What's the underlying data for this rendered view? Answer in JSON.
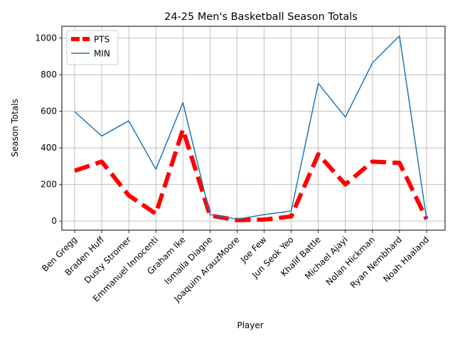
{
  "chart_data": {
    "type": "line",
    "title": "24-25 Men's Basketball Season Totals",
    "xlabel": "Player",
    "ylabel": "Season Totals",
    "categories": [
      "Ben Gregg",
      "Braden Huff",
      "Dusty Stromer",
      "Emmanuel Innocenti",
      "Graham Ike",
      "Ismaila Diagne",
      "Joaquim ArauzMoore",
      "Joe Few",
      "Jun Seok Yeo",
      "Khalif Battle",
      "Michael Ajayi",
      "Nolan Hickman",
      "Ryan Nembhard",
      "Noah Haaland"
    ],
    "ylim": [
      -50,
      1065
    ],
    "yticks": [
      0,
      200,
      400,
      600,
      800,
      1000
    ],
    "grid": true,
    "legend_position": "upper-left",
    "series": [
      {
        "name": "PTS",
        "color": "#ff0000",
        "style": "dashed",
        "values": [
          275,
          325,
          140,
          40,
          500,
          30,
          5,
          8,
          25,
          365,
          200,
          325,
          318,
          10
        ]
      },
      {
        "name": "MIN",
        "color": "#1f77b4",
        "style": "solid",
        "values": [
          598,
          465,
          548,
          283,
          648,
          35,
          10,
          35,
          55,
          753,
          568,
          865,
          1012,
          12
        ]
      }
    ]
  }
}
